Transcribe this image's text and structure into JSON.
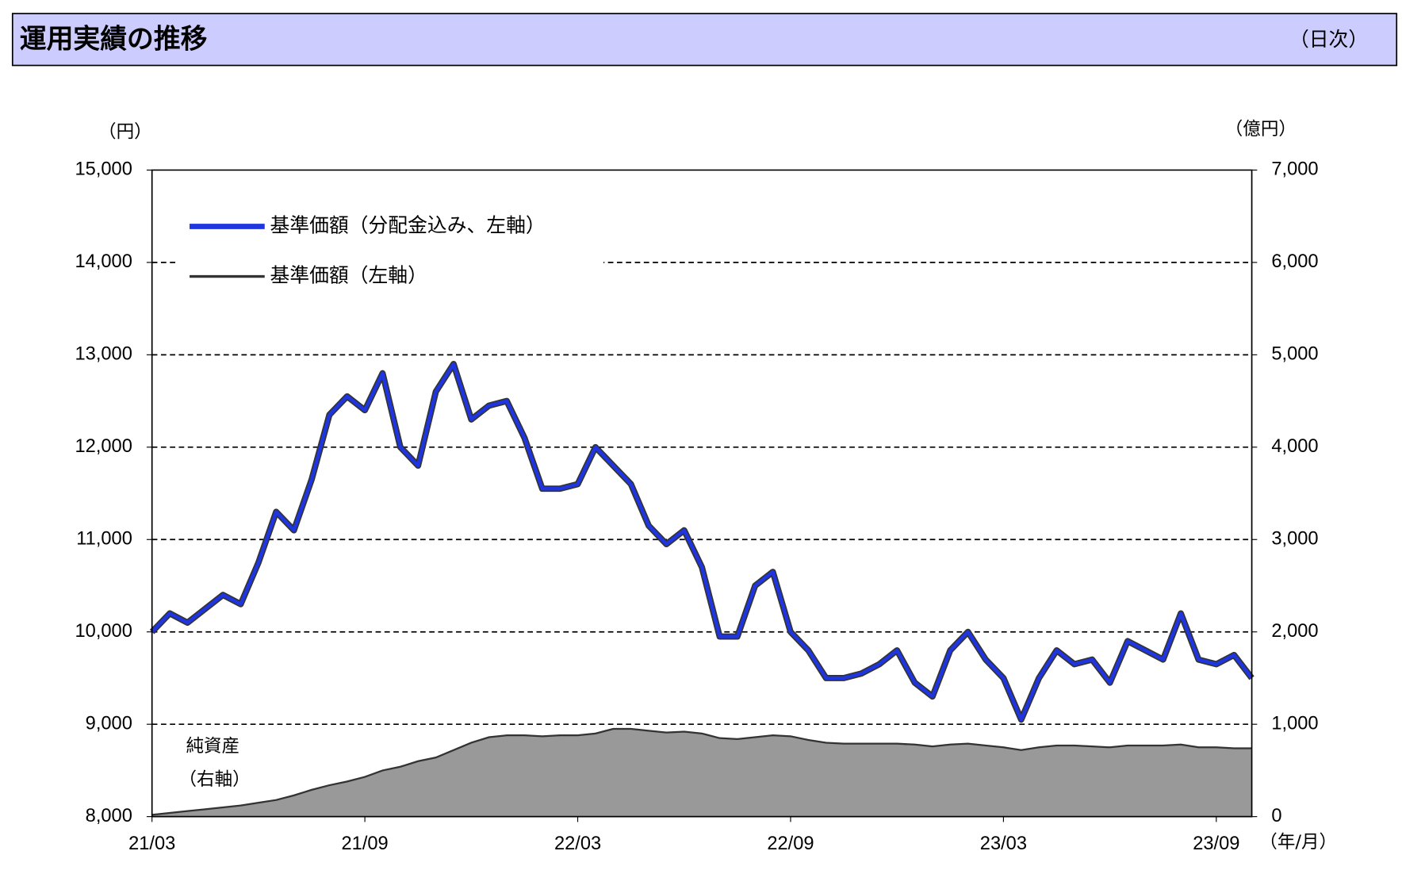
{
  "chart_data": {
    "type": "line",
    "title": "運用実績の推移",
    "subtitle": "（日次）",
    "y_label": "（円）",
    "y2_label": "（億円）",
    "x_label": "（年/月）",
    "annotations": [
      "純資産",
      "（右軸）"
    ],
    "categories": [
      "21/03",
      null,
      null,
      null,
      null,
      null,
      null,
      null,
      null,
      null,
      null,
      null,
      "21/09",
      null,
      null,
      null,
      null,
      null,
      null,
      null,
      null,
      null,
      null,
      null,
      "22/03",
      null,
      null,
      null,
      null,
      null,
      null,
      null,
      null,
      null,
      null,
      null,
      "22/09",
      null,
      null,
      null,
      null,
      null,
      null,
      null,
      null,
      null,
      null,
      null,
      "23/03",
      null,
      null,
      null,
      null,
      null,
      null,
      null,
      null,
      null,
      null,
      null,
      "23/09",
      null,
      null
    ],
    "series": [
      {
        "name": "純資産",
        "color": "#999999",
        "axis": "y2",
        "values": [
          20,
          40,
          60,
          80,
          100,
          120,
          150,
          180,
          230,
          290,
          340,
          380,
          430,
          500,
          540,
          600,
          640,
          720,
          800,
          860,
          880,
          880,
          870,
          880,
          880,
          900,
          950,
          950,
          930,
          910,
          920,
          900,
          850,
          840,
          860,
          880,
          870,
          830,
          800,
          790,
          790,
          790,
          790,
          780,
          760,
          780,
          790,
          770,
          750,
          720,
          750,
          770,
          770,
          760,
          750,
          770,
          770,
          770,
          780,
          750,
          750,
          740,
          740
        ]
      },
      {
        "name": "基準価額（左軸）",
        "color": "#333333",
        "values": [
          10000,
          10200,
          10100,
          10250,
          10400,
          10300,
          10750,
          11300,
          11100,
          11650,
          12350,
          12550,
          12400,
          12800,
          12000,
          11800,
          12600,
          12900,
          12300,
          12450,
          12500,
          12100,
          11550,
          11550,
          11600,
          12000,
          11800,
          11600,
          11150,
          10950,
          11100,
          10700,
          9950,
          9950,
          10500,
          10650,
          10000,
          9800,
          9500,
          9500,
          9550,
          9650,
          9800,
          9450,
          9300,
          9800,
          10000,
          9700,
          9500,
          9050,
          9500,
          9800,
          9650,
          9700,
          9450,
          9900,
          9800,
          9700,
          10200,
          9700,
          9650,
          9750,
          9500
        ]
      },
      {
        "name": "基準価額（分配金込み、左軸）",
        "color": "#1f35e0",
        "values": [
          10000,
          10200,
          10100,
          10250,
          10400,
          10300,
          10750,
          11300,
          11100,
          11650,
          12350,
          12550,
          12400,
          12800,
          12000,
          11800,
          12600,
          12900,
          12300,
          12450,
          12500,
          12100,
          11550,
          11550,
          11600,
          12000,
          11800,
          11600,
          11150,
          10950,
          11100,
          10700,
          9950,
          9950,
          10500,
          10650,
          10000,
          9800,
          9500,
          9500,
          9550,
          9650,
          9800,
          9450,
          9300,
          9800,
          10000,
          9700,
          9500,
          9050,
          9500,
          9800,
          9650,
          9700,
          9450,
          9900,
          9800,
          9700,
          10200,
          9700,
          9650,
          9750,
          9500
        ]
      }
    ],
    "ylim": [
      8000,
      15000
    ],
    "yticks": [
      {
        "value": 8000,
        "label": "8,000"
      },
      {
        "value": 9000,
        "label": "9,000"
      },
      {
        "value": 10000,
        "label": "10,000"
      },
      {
        "value": 11000,
        "label": "11,000"
      },
      {
        "value": 12000,
        "label": "12,000"
      },
      {
        "value": 13000,
        "label": "13,000"
      },
      {
        "value": 14000,
        "label": "14,000"
      },
      {
        "value": 15000,
        "label": "15,000"
      }
    ],
    "y2lim": [
      0,
      7000
    ],
    "y2ticks": [
      0,
      {
        "value": 1000,
        "label": "1,000"
      },
      {
        "value": 2000,
        "label": "2,000"
      },
      {
        "value": 3000,
        "label": "3,000"
      },
      {
        "value": 4000,
        "label": "4,000"
      },
      {
        "value": 5000,
        "label": "5,000"
      },
      {
        "value": 6000,
        "label": "6,000"
      },
      {
        "value": 7000,
        "label": "7,000"
      }
    ],
    "grid": true
  }
}
